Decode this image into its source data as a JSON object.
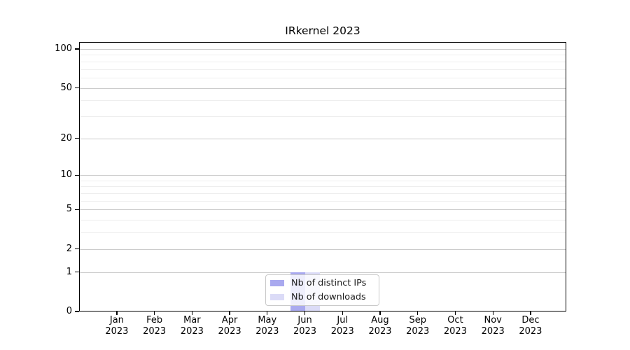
{
  "chart_data": {
    "type": "bar",
    "title": "IRkernel 2023",
    "xlabel": "",
    "ylabel": "",
    "categories": [
      "Jan 2023",
      "Feb 2023",
      "Mar 2023",
      "Apr 2023",
      "May 2023",
      "Jun 2023",
      "Jul 2023",
      "Aug 2023",
      "Sep 2023",
      "Oct 2023",
      "Nov 2023",
      "Dec 2023"
    ],
    "x_tick_month": [
      "Jan",
      "Feb",
      "Mar",
      "Apr",
      "May",
      "Jun",
      "Jul",
      "Aug",
      "Sep",
      "Oct",
      "Nov",
      "Dec"
    ],
    "x_tick_year": "2023",
    "series": [
      {
        "name": "Nb of distinct IPs",
        "color": "#a9a9ef",
        "values": [
          0,
          0,
          0,
          0,
          0,
          1,
          0,
          0,
          0,
          0,
          0,
          0
        ]
      },
      {
        "name": "Nb of downloads",
        "color": "#dbdbf7",
        "values": [
          0,
          0,
          0,
          0,
          0,
          1,
          0,
          0,
          0,
          0,
          0,
          0
        ]
      }
    ],
    "yscale": "log1p",
    "ylim": [
      0,
      113
    ],
    "y_major_ticks": [
      0,
      1,
      2,
      5,
      10,
      20,
      50,
      100
    ],
    "y_minor_gridlines": [
      3,
      4,
      6,
      7,
      8,
      9,
      30,
      40,
      60,
      70,
      80,
      90
    ],
    "grid": "both",
    "legend": {
      "location": "lower center",
      "entries": [
        "Nb of distinct IPs",
        "Nb of downloads"
      ]
    }
  }
}
